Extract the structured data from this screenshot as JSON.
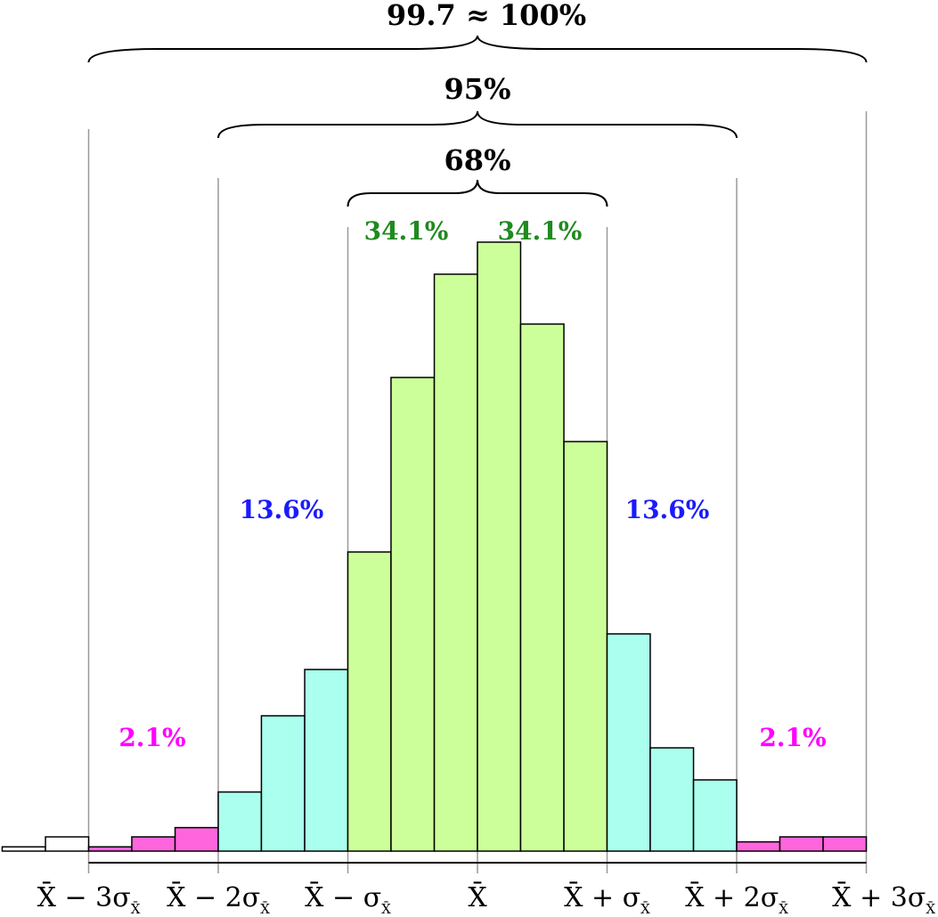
{
  "colors": {
    "outer_bin": "#ffffff",
    "tail": "#ff66dd",
    "mid": "#aaffee",
    "center": "#ccff99",
    "tail_text": "#ff00ff",
    "mid_text": "#1a1aff",
    "center_text": "#1f8a1f",
    "stroke": "#000000",
    "guide": "#999999"
  },
  "brace_labels": {
    "outer": "99.7 ≈ 100%",
    "middle": "95%",
    "inner": "68%"
  },
  "region_labels": {
    "left_tail": "2.1%",
    "left_mid": "13.6%",
    "left_center": "34.1%",
    "right_center": "34.1%",
    "right_mid": "13.6%",
    "right_tail": "2.1%"
  },
  "chart_data": {
    "type": "bar",
    "x_unit": "standard deviations from the mean",
    "x_ticks": [
      {
        "pos": -3,
        "main": "X̄ − 3σ",
        "sub": "X̄"
      },
      {
        "pos": -2,
        "main": "X̄ − 2σ",
        "sub": "X̄"
      },
      {
        "pos": -1,
        "main": "X̄ − σ",
        "sub": "X̄"
      },
      {
        "pos": 0,
        "main": "X̄",
        "sub": ""
      },
      {
        "pos": 1,
        "main": "X̄ + σ",
        "sub": "X̄"
      },
      {
        "pos": 2,
        "main": "X̄ + 2σ",
        "sub": "X̄"
      },
      {
        "pos": 3,
        "main": "X̄ + 3σ",
        "sub": "X̄"
      }
    ],
    "bins": [
      {
        "x0": -3.667,
        "x1": -3.333,
        "value": 0.6,
        "zone": "outer"
      },
      {
        "x0": -3.333,
        "x1": -3.0,
        "value": 2.0,
        "zone": "outer"
      },
      {
        "x0": -3.0,
        "x1": -2.667,
        "value": 0.6,
        "zone": "tail"
      },
      {
        "x0": -2.667,
        "x1": -2.333,
        "value": 2.0,
        "zone": "tail"
      },
      {
        "x0": -2.333,
        "x1": -2.0,
        "value": 3.3,
        "zone": "tail"
      },
      {
        "x0": -2.0,
        "x1": -1.667,
        "value": 8.3,
        "zone": "mid"
      },
      {
        "x0": -1.667,
        "x1": -1.333,
        "value": 19.0,
        "zone": "mid"
      },
      {
        "x0": -1.333,
        "x1": -1.0,
        "value": 25.5,
        "zone": "mid"
      },
      {
        "x0": -1.0,
        "x1": -0.667,
        "value": 42.0,
        "zone": "center"
      },
      {
        "x0": -0.667,
        "x1": -0.333,
        "value": 66.5,
        "zone": "center"
      },
      {
        "x0": -0.333,
        "x1": 0.0,
        "value": 81.0,
        "zone": "center"
      },
      {
        "x0": 0.0,
        "x1": 0.333,
        "value": 85.5,
        "zone": "center"
      },
      {
        "x0": 0.333,
        "x1": 0.667,
        "value": 74.0,
        "zone": "center"
      },
      {
        "x0": 0.667,
        "x1": 1.0,
        "value": 57.5,
        "zone": "center"
      },
      {
        "x0": 1.0,
        "x1": 1.333,
        "value": 30.5,
        "zone": "mid"
      },
      {
        "x0": 1.333,
        "x1": 1.667,
        "value": 14.5,
        "zone": "mid"
      },
      {
        "x0": 1.667,
        "x1": 2.0,
        "value": 10.0,
        "zone": "mid"
      },
      {
        "x0": 2.0,
        "x1": 2.333,
        "value": 1.3,
        "zone": "tail"
      },
      {
        "x0": 2.333,
        "x1": 2.667,
        "value": 2.0,
        "zone": "tail"
      },
      {
        "x0": 2.667,
        "x1": 3.0,
        "value": 2.0,
        "zone": "tail"
      }
    ],
    "xlim": [
      -3.667,
      3.0
    ],
    "ylim": [
      0,
      100
    ],
    "grid": false,
    "legend": "none"
  }
}
